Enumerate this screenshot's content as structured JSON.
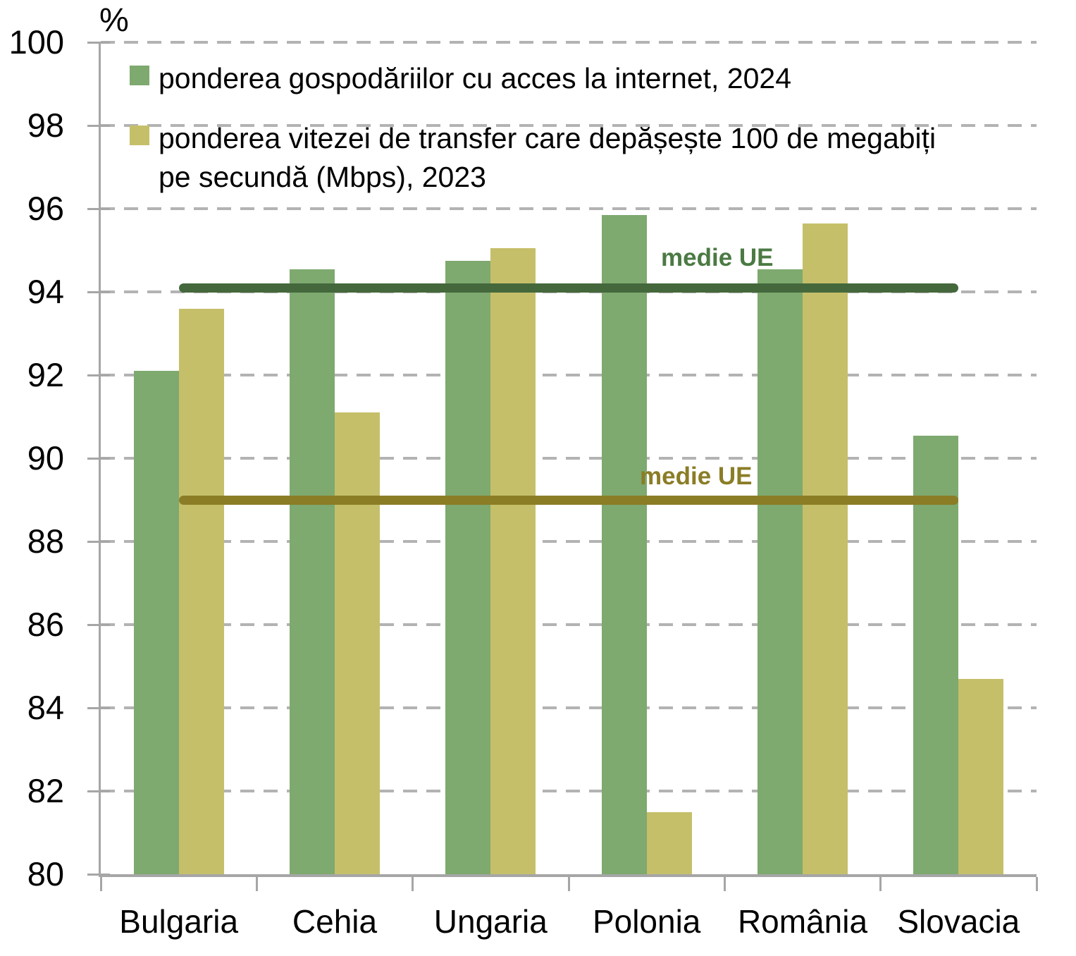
{
  "chart_data": {
    "type": "bar",
    "unit_label": "%",
    "ylim": [
      80,
      100
    ],
    "ytick_step": 2,
    "grid": "dashed-horizontal",
    "legend_position": "top-left",
    "axis_color": "#A6A6A6",
    "grid_color": "#B3B3B3",
    "categories": [
      "Bulgaria",
      "Cehia",
      "Ungaria",
      "Polonia",
      "România",
      "Slovacia"
    ],
    "series": [
      {
        "name": "ponderea gospodăriilor cu acces la internet, 2024",
        "color": "#7EA96F",
        "values": [
          92.1,
          94.55,
          94.75,
          95.85,
          94.55,
          90.55
        ]
      },
      {
        "name": "ponderea vitezei de transfer care depășește 100 de megabiți pe secundă (Mbps), 2023",
        "color": "#C5BF6A",
        "values": [
          93.6,
          91.1,
          95.05,
          81.5,
          95.65,
          84.7
        ]
      }
    ],
    "reference_lines": [
      {
        "label": "medie UE",
        "value": 94.1,
        "color": "#44683C",
        "text_color": "#4B7A43"
      },
      {
        "label": "medie UE",
        "value": 89.0,
        "color": "#8B7D26",
        "text_color": "#8B7D26"
      }
    ]
  },
  "legend": {
    "items": [
      {
        "label": "ponderea gospodăriilor cu acces la internet, 2024",
        "color": "#7EA96F"
      },
      {
        "label": "ponderea vitezei de transfer care depășește 100 de megabiți\npe secundă (Mbps), 2023",
        "color": "#C5BF6A"
      }
    ]
  }
}
